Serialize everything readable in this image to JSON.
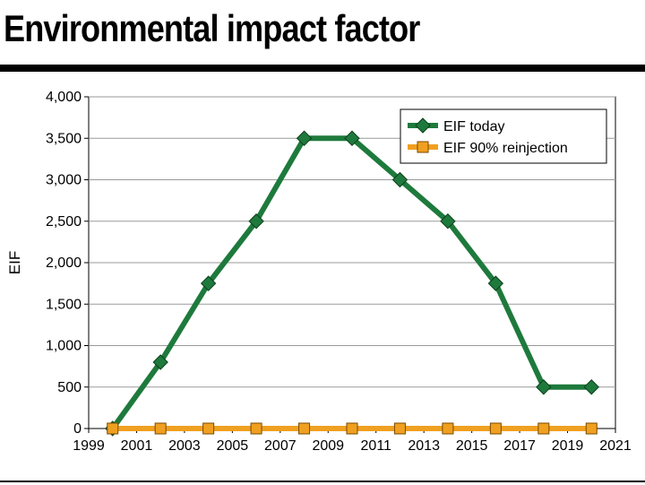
{
  "chart_data": {
    "type": "line",
    "title": "Environmental impact factor",
    "xlabel": "",
    "ylabel": "EIF",
    "xlim": [
      1999,
      2021
    ],
    "ylim": [
      0,
      4000
    ],
    "x_ticks": [
      1999,
      2001,
      2003,
      2005,
      2007,
      2009,
      2011,
      2013,
      2015,
      2017,
      2019,
      2021
    ],
    "y_ticks": [
      0,
      500,
      1000,
      1500,
      2000,
      2500,
      3000,
      3500,
      4000
    ],
    "y_tick_labels": [
      "0",
      "500",
      "1,000",
      "1,500",
      "2,000",
      "2,500",
      "3,000",
      "3,500",
      "4,000"
    ],
    "grid": "horizontal",
    "legend_position": "top-right",
    "series": [
      {
        "name": "EIF today",
        "color": "#1e7a3c",
        "marker": "diamond",
        "x": [
          2000,
          2002,
          2004,
          2006,
          2008,
          2010,
          2012,
          2014,
          2016,
          2018,
          2020
        ],
        "y": [
          0,
          800,
          1750,
          2500,
          3500,
          3500,
          3000,
          2500,
          1750,
          500,
          500
        ]
      },
      {
        "name": "EIF 90% reinjection",
        "color": "#f0a020",
        "marker": "square",
        "x": [
          2000,
          2002,
          2004,
          2006,
          2008,
          2010,
          2012,
          2014,
          2016,
          2018,
          2020
        ],
        "y": [
          0,
          0,
          0,
          0,
          0,
          0,
          0,
          0,
          0,
          0,
          0
        ]
      }
    ]
  }
}
